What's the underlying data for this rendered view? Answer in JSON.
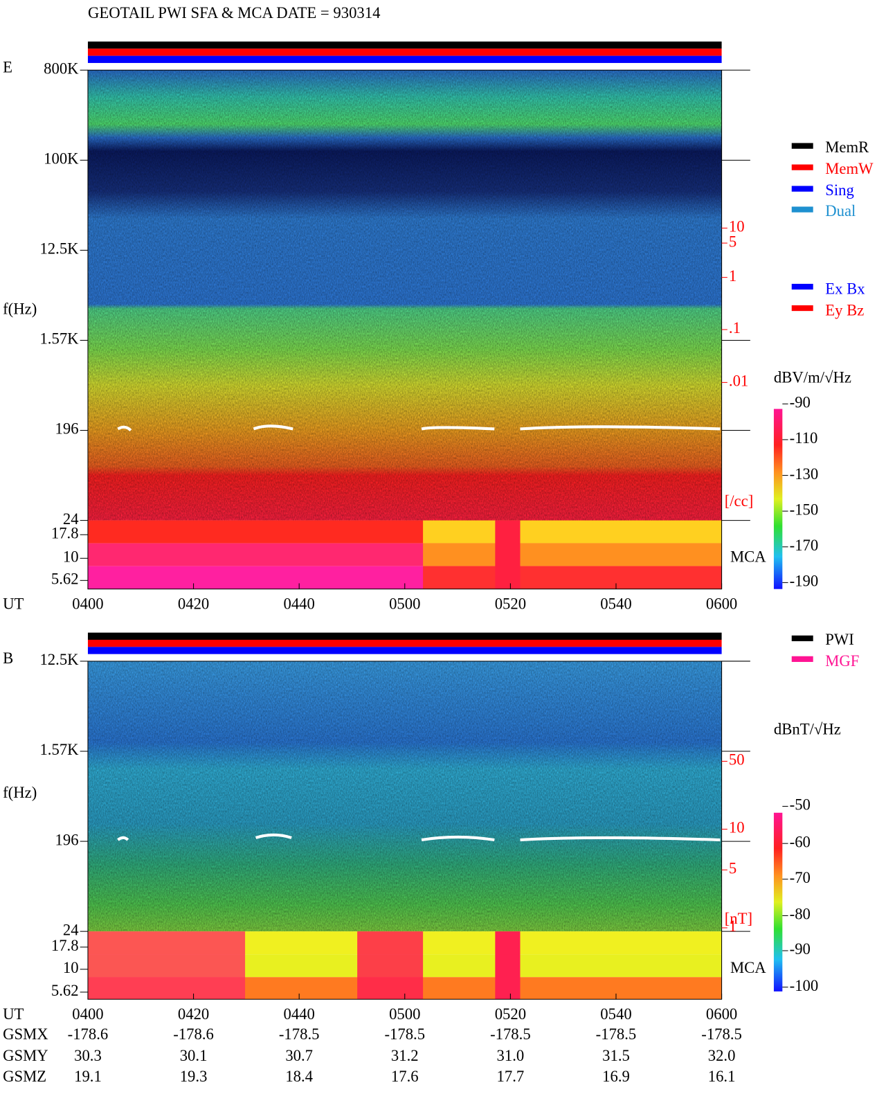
{
  "header": {
    "title": "GEOTAIL  PWI SFA & MCA   DATE = 930314"
  },
  "panels": [
    {
      "label": "E",
      "freq_ticks": [
        "800K",
        "100K",
        "12.5K",
        "1.57K",
        "196",
        "24",
        "17.8",
        "10",
        "5.62"
      ],
      "y_axis_label": "f(Hz)",
      "time_label": "UT",
      "time_ticks": [
        "0400",
        "0420",
        "0440",
        "0500",
        "0520",
        "0540",
        "0600"
      ],
      "mca_label": "MCA",
      "right_ticks": [
        "10",
        "5",
        "1",
        ".1",
        ".01"
      ],
      "right_unit": "[/cc]",
      "legend_top": [
        "MemR",
        "MemW",
        "Sing",
        "Dual"
      ],
      "legend_bottom": [
        "Ex Bx",
        "Ey Bz"
      ],
      "colorbar_unit": "dBV/m/√Hz",
      "colorbar_ticks": [
        "-90",
        "-110",
        "-130",
        "-150",
        "-170",
        "-190"
      ]
    },
    {
      "label": "B",
      "freq_ticks": [
        "12.5K",
        "1.57K",
        "196",
        "24",
        "17.8",
        "10",
        "5.62"
      ],
      "y_axis_label": "f(Hz)",
      "time_label": "UT",
      "time_ticks": [
        "0400",
        "0420",
        "0440",
        "0500",
        "0520",
        "0540",
        "0600"
      ],
      "mca_label": "MCA",
      "right_ticks": [
        "50",
        "10",
        "5",
        "1"
      ],
      "right_unit": "[nT]",
      "legend_top": [
        "PWI",
        "MGF"
      ],
      "colorbar_unit": "dBnT/√Hz",
      "colorbar_ticks": [
        "-50",
        "-60",
        "-70",
        "-80",
        "-90",
        "-100"
      ]
    }
  ],
  "orbit": {
    "rows": [
      {
        "name": "GSMX",
        "values": [
          "-178.6",
          "-178.6",
          "-178.5",
          "-178.5",
          "-178.5",
          "-178.5",
          "-178.5"
        ]
      },
      {
        "name": "GSMY",
        "values": [
          "30.3",
          "30.1",
          "30.7",
          "31.2",
          "31.0",
          "31.5",
          "32.0"
        ]
      },
      {
        "name": "GSMZ",
        "values": [
          "19.1",
          "19.3",
          "18.4",
          "17.6",
          "17.7",
          "16.9",
          "16.1"
        ]
      }
    ]
  }
}
